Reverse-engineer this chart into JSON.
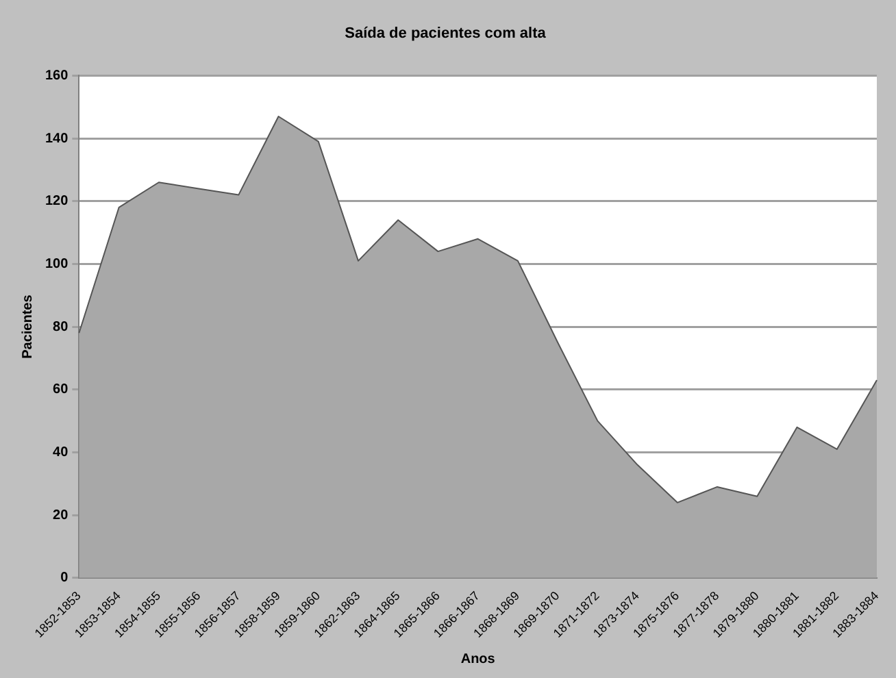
{
  "chart_data": {
    "type": "area",
    "title": "Saída de pacientes com alta",
    "xlabel": "Anos",
    "ylabel": "Pacientes",
    "categories": [
      "1852-1853",
      "1853-1854",
      "1854-1855",
      "1855-1856",
      "1856-1857",
      "1858-1859",
      "1859-1860",
      "1862-1863",
      "1864-1865",
      "1865-1866",
      "1866-1867",
      "1868-1869",
      "1869-1870",
      "1871-1872",
      "1873-1874",
      "1875-1876",
      "1877-1878",
      "1879-1880",
      "1880-1881",
      "1881-1882",
      "1883-1884"
    ],
    "series": [
      {
        "color": "#a8a8a8",
        "values": [
          78,
          118,
          126,
          124,
          122,
          147,
          139,
          101,
          114,
          104,
          108,
          101,
          75,
          50,
          36,
          24,
          29,
          26,
          48,
          41,
          63
        ]
      }
    ],
    "ylim": [
      0,
      160
    ],
    "yticks": [
      0,
      20,
      40,
      60,
      80,
      100,
      120,
      140,
      160
    ],
    "grid": "y",
    "legend": false
  }
}
